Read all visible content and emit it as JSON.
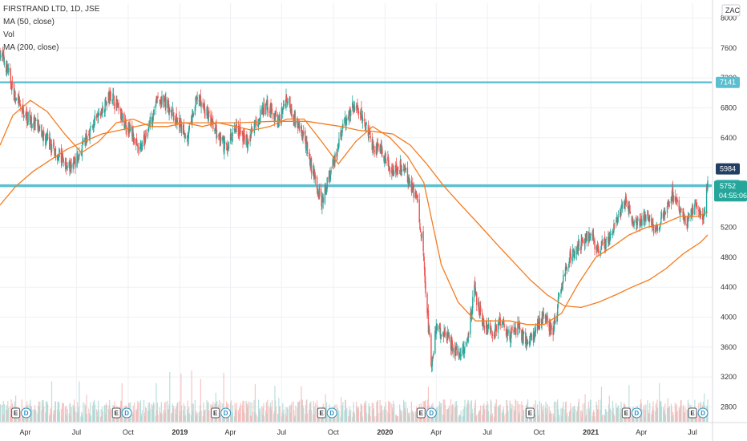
{
  "legend": {
    "title": "FIRSTRAND LTD, 1D, JSE",
    "ma50": "MA (50, close)",
    "vol": "Vol",
    "ma200": "MA (200, close)"
  },
  "currency": "ZAC",
  "colors": {
    "up": "#26a69a",
    "down": "#ef5350",
    "ma50": "#f57c1f",
    "ma200": "#f57c1f",
    "level": "#5bbfcf",
    "grid": "#eef0f3",
    "axis_text": "#333333"
  },
  "chart_data": {
    "type": "line",
    "title": "FIRSTRAND LTD, 1D, JSE",
    "xlabel": "",
    "ylabel": "",
    "ylim": [
      2600,
      8200
    ],
    "y_ticks": [
      2800,
      3200,
      3600,
      4000,
      4400,
      4800,
      5200,
      5600,
      6000,
      6400,
      6800,
      7200,
      7600,
      8000
    ],
    "x_ticks": [
      {
        "label": "Apr",
        "date": "2018-04-01",
        "bold": false
      },
      {
        "label": "Jul",
        "date": "2018-07-01",
        "bold": false
      },
      {
        "label": "Oct",
        "date": "2018-10-01",
        "bold": false
      },
      {
        "label": "2019",
        "date": "2019-01-01",
        "bold": true
      },
      {
        "label": "Apr",
        "date": "2019-04-01",
        "bold": false
      },
      {
        "label": "Jul",
        "date": "2019-07-01",
        "bold": false
      },
      {
        "label": "Oct",
        "date": "2019-10-01",
        "bold": false
      },
      {
        "label": "2020",
        "date": "2020-01-01",
        "bold": true
      },
      {
        "label": "Apr",
        "date": "2020-04-01",
        "bold": false
      },
      {
        "label": "Jul",
        "date": "2020-07-01",
        "bold": false
      },
      {
        "label": "Oct",
        "date": "2020-10-01",
        "bold": false
      },
      {
        "label": "2021",
        "date": "2021-01-01",
        "bold": true
      },
      {
        "label": "Apr",
        "date": "2021-04-01",
        "bold": false
      },
      {
        "label": "Jul",
        "date": "2021-07-01",
        "bold": false
      }
    ],
    "date_range": [
      "2018-02-15",
      "2021-07-28"
    ],
    "horizontal_levels": [
      {
        "value": 7141,
        "label": "7141"
      },
      {
        "value": 5764,
        "label": "5764"
      },
      {
        "value": 5752,
        "label": "5752"
      }
    ],
    "price_labels": [
      {
        "value": 5984,
        "label": "5984"
      },
      {
        "value": 5752,
        "label": "5752",
        "sub": "04:55:06"
      }
    ],
    "events": [
      {
        "date": "2018-03-15",
        "letters": [
          "E",
          "D"
        ]
      },
      {
        "date": "2018-09-10",
        "letters": [
          "E",
          "D"
        ]
      },
      {
        "date": "2019-03-05",
        "letters": [
          "E",
          "D"
        ]
      },
      {
        "date": "2019-09-10",
        "letters": [
          "E",
          "D"
        ]
      },
      {
        "date": "2020-03-05",
        "letters": [
          "E",
          "D"
        ]
      },
      {
        "date": "2020-09-15",
        "letters": [
          "E"
        ]
      },
      {
        "date": "2021-03-05",
        "letters": [
          "E",
          "D"
        ]
      },
      {
        "date": "2021-07-01",
        "letters": [
          "E",
          "D"
        ]
      }
    ],
    "series": [
      {
        "name": "FIRSTRAND LTD",
        "kind": "price",
        "points": [
          [
            "2018-02-15",
            7550
          ],
          [
            "2018-03-01",
            7300
          ],
          [
            "2018-03-15",
            6900
          ],
          [
            "2018-04-01",
            6700
          ],
          [
            "2018-04-20",
            6550
          ],
          [
            "2018-05-15",
            6300
          ],
          [
            "2018-06-01",
            6150
          ],
          [
            "2018-06-20",
            6000
          ],
          [
            "2018-07-05",
            6150
          ],
          [
            "2018-07-25",
            6500
          ],
          [
            "2018-08-15",
            6750
          ],
          [
            "2018-09-01",
            7000
          ],
          [
            "2018-09-20",
            6650
          ],
          [
            "2018-10-05",
            6500
          ],
          [
            "2018-10-20",
            6200
          ],
          [
            "2018-11-05",
            6500
          ],
          [
            "2018-11-20",
            6900
          ],
          [
            "2018-12-10",
            6850
          ],
          [
            "2018-12-28",
            6600
          ],
          [
            "2019-01-15",
            6400
          ],
          [
            "2019-02-01",
            6950
          ],
          [
            "2019-02-20",
            6700
          ],
          [
            "2019-03-10",
            6400
          ],
          [
            "2019-03-25",
            6250
          ],
          [
            "2019-04-10",
            6550
          ],
          [
            "2019-05-01",
            6350
          ],
          [
            "2019-05-20",
            6650
          ],
          [
            "2019-06-05",
            6850
          ],
          [
            "2019-06-25",
            6600
          ],
          [
            "2019-07-10",
            6950
          ],
          [
            "2019-07-25",
            6650
          ],
          [
            "2019-08-10",
            6400
          ],
          [
            "2019-08-25",
            5950
          ],
          [
            "2019-09-10",
            5550
          ],
          [
            "2019-09-25",
            5900
          ],
          [
            "2019-10-10",
            6300
          ],
          [
            "2019-10-25",
            6700
          ],
          [
            "2019-11-10",
            6850
          ],
          [
            "2019-11-25",
            6600
          ],
          [
            "2019-12-10",
            6300
          ],
          [
            "2019-12-28",
            6200
          ],
          [
            "2020-01-15",
            5950
          ],
          [
            "2020-02-01",
            6050
          ],
          [
            "2020-02-15",
            5800
          ],
          [
            "2020-02-28",
            5550
          ],
          [
            "2020-03-08",
            4900
          ],
          [
            "2020-03-15",
            4200
          ],
          [
            "2020-03-23",
            3350
          ],
          [
            "2020-04-01",
            3850
          ],
          [
            "2020-04-20",
            3750
          ],
          [
            "2020-05-10",
            3500
          ],
          [
            "2020-05-25",
            3650
          ],
          [
            "2020-06-08",
            4350
          ],
          [
            "2020-06-25",
            3900
          ],
          [
            "2020-07-10",
            3750
          ],
          [
            "2020-07-25",
            3950
          ],
          [
            "2020-08-10",
            3750
          ],
          [
            "2020-08-25",
            3850
          ],
          [
            "2020-09-10",
            3650
          ],
          [
            "2020-09-25",
            3850
          ],
          [
            "2020-10-10",
            4000
          ],
          [
            "2020-10-25",
            3800
          ],
          [
            "2020-11-10",
            4400
          ],
          [
            "2020-11-25",
            4800
          ],
          [
            "2020-12-10",
            4950
          ],
          [
            "2020-12-28",
            5100
          ],
          [
            "2021-01-15",
            4900
          ],
          [
            "2021-02-01",
            5050
          ],
          [
            "2021-02-20",
            5350
          ],
          [
            "2021-03-05",
            5600
          ],
          [
            "2021-03-20",
            5200
          ],
          [
            "2021-04-10",
            5400
          ],
          [
            "2021-04-25",
            5150
          ],
          [
            "2021-05-10",
            5350
          ],
          [
            "2021-05-25",
            5650
          ],
          [
            "2021-06-08",
            5400
          ],
          [
            "2021-06-20",
            5250
          ],
          [
            "2021-07-05",
            5450
          ],
          [
            "2021-07-20",
            5350
          ],
          [
            "2021-07-28",
            5752
          ]
        ]
      },
      {
        "name": "MA (50, close)",
        "kind": "ma50",
        "points": [
          [
            "2018-02-15",
            6300
          ],
          [
            "2018-03-10",
            6700
          ],
          [
            "2018-04-10",
            6900
          ],
          [
            "2018-05-10",
            6750
          ],
          [
            "2018-06-10",
            6450
          ],
          [
            "2018-07-10",
            6200
          ],
          [
            "2018-08-10",
            6350
          ],
          [
            "2018-09-10",
            6600
          ],
          [
            "2018-10-10",
            6650
          ],
          [
            "2018-11-10",
            6550
          ],
          [
            "2018-12-10",
            6550
          ],
          [
            "2019-01-10",
            6600
          ],
          [
            "2019-02-10",
            6550
          ],
          [
            "2019-03-10",
            6600
          ],
          [
            "2019-04-10",
            6550
          ],
          [
            "2019-05-10",
            6500
          ],
          [
            "2019-06-10",
            6550
          ],
          [
            "2019-07-10",
            6650
          ],
          [
            "2019-08-10",
            6650
          ],
          [
            "2019-09-10",
            6350
          ],
          [
            "2019-10-10",
            6050
          ],
          [
            "2019-11-10",
            6350
          ],
          [
            "2019-12-10",
            6550
          ],
          [
            "2020-01-10",
            6400
          ],
          [
            "2020-02-10",
            6150
          ],
          [
            "2020-03-10",
            5800
          ],
          [
            "2020-04-10",
            4700
          ],
          [
            "2020-05-10",
            4200
          ],
          [
            "2020-06-10",
            3950
          ],
          [
            "2020-07-10",
            3950
          ],
          [
            "2020-08-10",
            3950
          ],
          [
            "2020-09-10",
            3900
          ],
          [
            "2020-10-10",
            3900
          ],
          [
            "2020-11-10",
            4050
          ],
          [
            "2020-12-10",
            4450
          ],
          [
            "2021-01-10",
            4800
          ],
          [
            "2021-02-10",
            4950
          ],
          [
            "2021-03-10",
            5100
          ],
          [
            "2021-04-10",
            5200
          ],
          [
            "2021-05-10",
            5250
          ],
          [
            "2021-06-10",
            5350
          ],
          [
            "2021-07-10",
            5350
          ],
          [
            "2021-07-28",
            5400
          ]
        ]
      },
      {
        "name": "MA (200, close)",
        "kind": "ma200",
        "points": [
          [
            "2018-02-15",
            5500
          ],
          [
            "2018-03-15",
            5750
          ],
          [
            "2018-04-15",
            5950
          ],
          [
            "2018-05-15",
            6100
          ],
          [
            "2018-06-15",
            6250
          ],
          [
            "2018-07-15",
            6350
          ],
          [
            "2018-08-15",
            6450
          ],
          [
            "2018-09-15",
            6500
          ],
          [
            "2018-10-15",
            6550
          ],
          [
            "2018-11-15",
            6600
          ],
          [
            "2018-12-15",
            6600
          ],
          [
            "2019-02-15",
            6600
          ],
          [
            "2019-04-15",
            6600
          ],
          [
            "2019-06-15",
            6620
          ],
          [
            "2019-08-15",
            6620
          ],
          [
            "2019-10-15",
            6550
          ],
          [
            "2019-11-15",
            6500
          ],
          [
            "2019-12-15",
            6480
          ],
          [
            "2020-01-15",
            6450
          ],
          [
            "2020-02-15",
            6300
          ],
          [
            "2020-03-15",
            6050
          ],
          [
            "2020-04-15",
            5750
          ],
          [
            "2020-05-15",
            5500
          ],
          [
            "2020-06-15",
            5250
          ],
          [
            "2020-07-15",
            5000
          ],
          [
            "2020-08-15",
            4750
          ],
          [
            "2020-09-15",
            4500
          ],
          [
            "2020-10-15",
            4300
          ],
          [
            "2020-11-15",
            4150
          ],
          [
            "2020-12-15",
            4130
          ],
          [
            "2021-01-15",
            4200
          ],
          [
            "2021-02-15",
            4300
          ],
          [
            "2021-03-15",
            4400
          ],
          [
            "2021-04-15",
            4500
          ],
          [
            "2021-05-15",
            4650
          ],
          [
            "2021-06-15",
            4850
          ],
          [
            "2021-07-15",
            5000
          ],
          [
            "2021-07-28",
            5100
          ]
        ]
      }
    ]
  }
}
